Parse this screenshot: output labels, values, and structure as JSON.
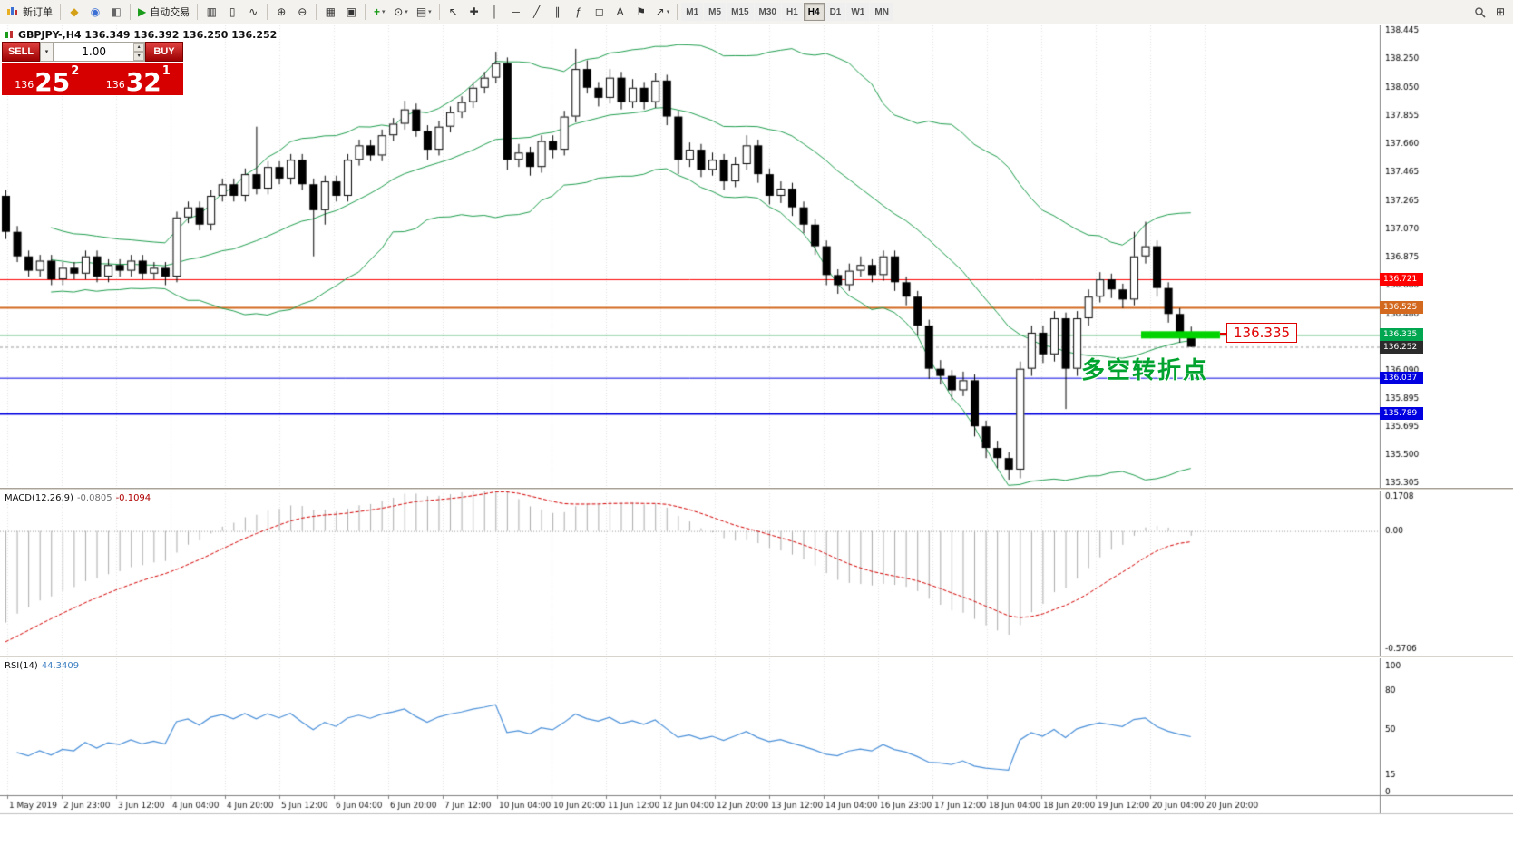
{
  "toolbar": {
    "new_order_label": "新订单",
    "auto_trading_label": "自动交易",
    "timeframes": [
      "M1",
      "M5",
      "M15",
      "M30",
      "H1",
      "H4",
      "D1",
      "W1",
      "MN"
    ],
    "active_timeframe": "H4"
  },
  "icons": {
    "profiles": "◆",
    "market_watch": "◉",
    "alerts": "◧",
    "auto_play": "▶",
    "chart_bars": "▥",
    "chart_candles": "▯",
    "chart_line": "∿",
    "zoom_in": "⊕",
    "zoom_out": "⊖",
    "tile_windows": "▦",
    "cascade": "▣",
    "add_indicator": "+",
    "periods": "⊙",
    "templates": "▤",
    "cursor": "↖",
    "crosshair": "✚",
    "vline": "│",
    "hline": "─",
    "trendline": "╱",
    "channel": "∥",
    "fibonacci": "ƒ",
    "shapes": "◻",
    "text": "A",
    "label": "⚑",
    "arrows": "↗",
    "new_window": "⊞",
    "caret": "▾",
    "spin_up": "▴",
    "spin_down": "▾"
  },
  "quote": {
    "sell_label": "SELL",
    "buy_label": "BUY",
    "volume": "1.00",
    "sell_small": "136",
    "sell_big": "25",
    "sell_sup": "2",
    "buy_small": "136",
    "buy_big": "32",
    "buy_sup": "1"
  },
  "chart_header": {
    "title": "GBPJPY-,H4 136.349 136.392 136.250 136.252"
  },
  "indicators": {
    "macd_name": "MACD(12,26,9)",
    "macd_main": "-0.0805",
    "macd_signal": "-0.1094",
    "rsi_name": "RSI(14)",
    "rsi_value": "44.3409"
  },
  "annotations": {
    "turning_point": "多空转折点",
    "level_callout": "136.335"
  },
  "chart_data": {
    "type": "candlestick",
    "symbol": "GBPJPY-",
    "timeframe": "H4",
    "ohlc": {
      "open": 136.349,
      "high": 136.392,
      "low": 136.25,
      "close": 136.252
    },
    "y_ticks": [
      "138.445",
      "138.250",
      "138.050",
      "137.855",
      "137.660",
      "137.465",
      "137.265",
      "137.070",
      "136.875",
      "136.680",
      "136.480",
      "136.285",
      "136.090",
      "135.895",
      "135.695",
      "135.500",
      "135.305"
    ],
    "x_labels": [
      "1 May 2019",
      "2 Jun 23:00",
      "3 Jun 12:00",
      "4 Jun 04:00",
      "4 Jun 20:00",
      "5 Jun 12:00",
      "6 Jun 04:00",
      "6 Jun 20:00",
      "7 Jun 12:00",
      "10 Jun 04:00",
      "10 Jun 20:00",
      "11 Jun 12:00",
      "12 Jun 04:00",
      "12 Jun 20:00",
      "13 Jun 12:00",
      "14 Jun 04:00",
      "16 Jun 23:00",
      "17 Jun 12:00",
      "18 Jun 04:00",
      "18 Jun 20:00",
      "19 Jun 12:00",
      "20 Jun 04:00",
      "20 Jun 20:00"
    ],
    "levels": [
      {
        "price": 136.721,
        "color": "#ff0000",
        "width": 1
      },
      {
        "price": 136.525,
        "color": "#d2691e",
        "width": 2
      },
      {
        "price": 136.335,
        "color": "#2fa84f",
        "width": 1
      },
      {
        "price": 136.037,
        "color": "#0000e0",
        "width": 1
      },
      {
        "price": 135.789,
        "color": "#0000e0",
        "width": 2
      }
    ],
    "current_price": 136.252,
    "price_markers": [
      {
        "label": "136.721",
        "price": 136.721,
        "color": "#ff0000",
        "current": false
      },
      {
        "label": "136.525",
        "price": 136.525,
        "color": "#d2691e",
        "current": false
      },
      {
        "label": "136.335",
        "price": 136.335,
        "color": "#00a650",
        "current": false
      },
      {
        "label": "136.252",
        "price": 136.252,
        "color": "#2b2b2b",
        "current": true
      },
      {
        "label": "136.037",
        "price": 136.037,
        "color": "#0000e0",
        "current": false
      },
      {
        "label": "135.789",
        "price": 135.789,
        "color": "#0000e0",
        "current": false
      }
    ],
    "bollinger": {
      "period": 20,
      "deviation": 2,
      "color": "#1f9e4e"
    },
    "macd": {
      "params": [
        12,
        26,
        9
      ],
      "ticks": [
        "0.1708",
        "0.00",
        "-0.5706"
      ],
      "histogram_color": "#ababab",
      "signal_color": "#d40000"
    },
    "rsi": {
      "period": 14,
      "ticks": [
        "100",
        "80",
        "50",
        "15",
        "0"
      ],
      "color": "#4a90d9"
    },
    "highlight_bar": {
      "price": 136.335,
      "x_from": 1258,
      "x_to": 1345,
      "color": "#00d300"
    },
    "candles": [
      [
        137.3,
        137.34,
        137.0,
        137.05
      ],
      [
        137.05,
        137.09,
        136.84,
        136.88
      ],
      [
        136.88,
        136.92,
        136.74,
        136.78
      ],
      [
        136.78,
        136.89,
        136.74,
        136.85
      ],
      [
        136.85,
        136.89,
        136.68,
        136.72
      ],
      [
        136.72,
        136.84,
        136.68,
        136.8
      ],
      [
        136.8,
        136.84,
        136.72,
        136.76
      ],
      [
        136.76,
        136.92,
        136.72,
        136.88
      ],
      [
        136.88,
        136.92,
        136.7,
        136.74
      ],
      [
        136.74,
        136.86,
        136.7,
        136.82
      ],
      [
        136.82,
        136.86,
        136.74,
        136.78
      ],
      [
        136.78,
        136.89,
        136.74,
        136.85
      ],
      [
        136.85,
        136.89,
        136.72,
        136.76
      ],
      [
        136.76,
        136.84,
        136.72,
        136.8
      ],
      [
        136.8,
        136.84,
        136.68,
        136.74
      ],
      [
        136.74,
        137.19,
        136.7,
        137.15
      ],
      [
        137.15,
        137.26,
        137.11,
        137.22
      ],
      [
        137.22,
        137.26,
        137.06,
        137.1
      ],
      [
        137.1,
        137.34,
        137.06,
        137.3
      ],
      [
        137.3,
        137.42,
        137.26,
        137.38
      ],
      [
        137.38,
        137.42,
        137.26,
        137.3
      ],
      [
        137.3,
        137.49,
        137.26,
        137.45
      ],
      [
        137.45,
        137.78,
        137.31,
        137.35
      ],
      [
        137.35,
        137.54,
        137.31,
        137.5
      ],
      [
        137.5,
        137.54,
        137.38,
        137.42
      ],
      [
        137.42,
        137.59,
        137.38,
        137.55
      ],
      [
        137.55,
        137.59,
        137.34,
        137.38
      ],
      [
        137.38,
        137.42,
        136.88,
        137.2
      ],
      [
        137.2,
        137.44,
        137.1,
        137.4
      ],
      [
        137.4,
        137.44,
        137.26,
        137.3
      ],
      [
        137.3,
        137.59,
        137.26,
        137.55
      ],
      [
        137.55,
        137.69,
        137.51,
        137.65
      ],
      [
        137.65,
        137.69,
        137.54,
        137.58
      ],
      [
        137.58,
        137.76,
        137.54,
        137.72
      ],
      [
        137.72,
        137.84,
        137.68,
        137.8
      ],
      [
        137.8,
        137.96,
        137.76,
        137.9
      ],
      [
        137.9,
        137.94,
        137.71,
        137.75
      ],
      [
        137.75,
        137.79,
        137.55,
        137.62
      ],
      [
        137.62,
        137.82,
        137.58,
        137.78
      ],
      [
        137.78,
        137.92,
        137.74,
        137.88
      ],
      [
        137.88,
        137.99,
        137.84,
        137.95
      ],
      [
        137.95,
        138.09,
        137.91,
        138.05
      ],
      [
        138.05,
        138.16,
        138.01,
        138.12
      ],
      [
        138.12,
        138.3,
        138.08,
        138.22
      ],
      [
        138.22,
        138.26,
        137.48,
        137.55
      ],
      [
        137.55,
        137.66,
        137.5,
        137.6
      ],
      [
        137.6,
        137.64,
        137.44,
        137.5
      ],
      [
        137.5,
        137.72,
        137.46,
        137.68
      ],
      [
        137.68,
        137.72,
        137.56,
        137.62
      ],
      [
        137.62,
        137.89,
        137.58,
        137.85
      ],
      [
        137.85,
        138.32,
        137.81,
        138.18
      ],
      [
        138.18,
        138.24,
        138.01,
        138.05
      ],
      [
        138.05,
        138.09,
        137.92,
        137.98
      ],
      [
        137.98,
        138.18,
        137.94,
        138.12
      ],
      [
        138.12,
        138.16,
        137.9,
        137.95
      ],
      [
        137.95,
        138.11,
        137.91,
        138.05
      ],
      [
        138.05,
        138.09,
        137.9,
        137.95
      ],
      [
        137.95,
        138.15,
        137.91,
        138.1
      ],
      [
        138.1,
        138.14,
        137.79,
        137.85
      ],
      [
        137.85,
        137.89,
        137.45,
        137.55
      ],
      [
        137.55,
        137.67,
        137.5,
        137.62
      ],
      [
        137.62,
        137.66,
        137.43,
        137.48
      ],
      [
        137.48,
        137.6,
        137.44,
        137.55
      ],
      [
        137.55,
        137.59,
        137.34,
        137.4
      ],
      [
        137.4,
        137.57,
        137.36,
        137.52
      ],
      [
        137.52,
        137.72,
        137.48,
        137.65
      ],
      [
        137.65,
        137.69,
        137.39,
        137.45
      ],
      [
        137.45,
        137.49,
        137.24,
        137.3
      ],
      [
        137.3,
        137.4,
        137.25,
        137.35
      ],
      [
        137.35,
        137.39,
        137.16,
        137.22
      ],
      [
        137.22,
        137.26,
        137.04,
        137.1
      ],
      [
        137.1,
        137.14,
        136.89,
        136.95
      ],
      [
        136.95,
        136.99,
        136.68,
        136.75
      ],
      [
        136.75,
        136.79,
        136.62,
        136.68
      ],
      [
        136.68,
        136.83,
        136.64,
        136.78
      ],
      [
        136.78,
        136.88,
        136.74,
        136.82
      ],
      [
        136.82,
        136.86,
        136.7,
        136.75
      ],
      [
        136.75,
        136.92,
        136.71,
        136.88
      ],
      [
        136.88,
        136.92,
        136.64,
        136.7
      ],
      [
        136.7,
        136.74,
        136.54,
        136.6
      ],
      [
        136.6,
        136.64,
        136.33,
        136.4
      ],
      [
        136.4,
        136.44,
        136.03,
        136.1
      ],
      [
        136.1,
        136.16,
        135.99,
        136.05
      ],
      [
        136.05,
        136.09,
        135.88,
        135.95
      ],
      [
        135.95,
        136.08,
        135.91,
        136.02
      ],
      [
        136.02,
        136.06,
        135.63,
        135.7
      ],
      [
        135.7,
        135.74,
        135.48,
        135.55
      ],
      [
        135.55,
        135.6,
        135.41,
        135.48
      ],
      [
        135.48,
        135.52,
        135.33,
        135.4
      ],
      [
        135.4,
        136.15,
        135.34,
        136.1
      ],
      [
        136.1,
        136.4,
        136.05,
        136.35
      ],
      [
        136.35,
        136.4,
        136.14,
        136.2
      ],
      [
        136.2,
        136.5,
        136.15,
        136.45
      ],
      [
        136.45,
        136.49,
        135.82,
        136.1
      ],
      [
        136.1,
        136.5,
        136.05,
        136.45
      ],
      [
        136.45,
        136.65,
        136.4,
        136.6
      ],
      [
        136.6,
        136.77,
        136.56,
        136.72
      ],
      [
        136.72,
        136.76,
        136.59,
        136.65
      ],
      [
        136.65,
        136.69,
        136.52,
        136.58
      ],
      [
        136.58,
        137.05,
        136.54,
        136.88
      ],
      [
        136.88,
        137.12,
        136.83,
        136.95
      ],
      [
        136.95,
        136.99,
        136.6,
        136.66
      ],
      [
        136.66,
        136.7,
        136.42,
        136.48
      ],
      [
        136.48,
        136.52,
        136.28,
        136.35
      ],
      [
        136.349,
        136.392,
        136.25,
        136.252
      ]
    ]
  }
}
